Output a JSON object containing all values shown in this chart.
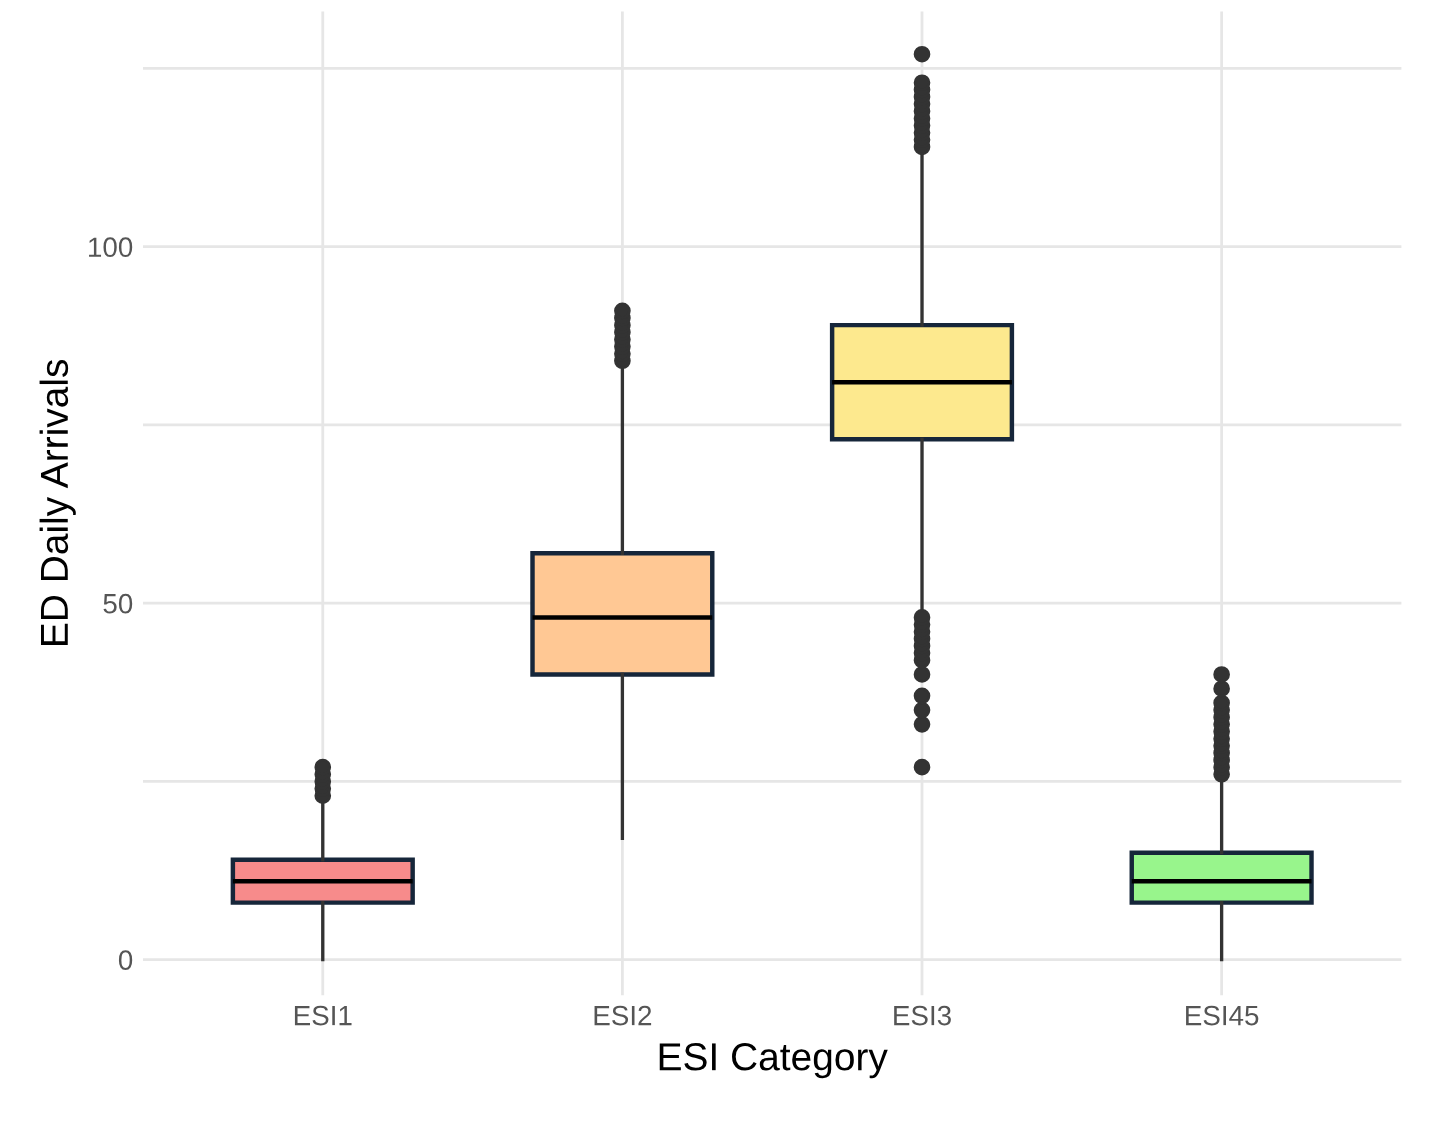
{
  "chart_data": {
    "type": "box",
    "xlabel": "ESI Category",
    "ylabel": "ED Daily Arrivals",
    "categories": [
      "ESI1",
      "ESI2",
      "ESI3",
      "ESI45"
    ],
    "colors": [
      "#f78b8b",
      "#ffc894",
      "#fde98e",
      "#98f58c"
    ],
    "boxes": [
      {
        "low": 0,
        "q1": 8,
        "median": 11,
        "q3": 14,
        "high": 22,
        "outliers": [
          23,
          24,
          25,
          26,
          27
        ]
      },
      {
        "low": 17,
        "q1": 40,
        "median": 48,
        "q3": 57,
        "high": 83,
        "outliers": [
          84,
          85,
          86,
          87,
          88,
          89,
          90,
          91
        ]
      },
      {
        "low": 49,
        "q1": 73,
        "median": 81,
        "q3": 89,
        "high": 113,
        "outliers": [
          27,
          33,
          35,
          37,
          40,
          42,
          43,
          44,
          45,
          46,
          47,
          48,
          114,
          115,
          116,
          117,
          118,
          119,
          120,
          121,
          122,
          123,
          127
        ]
      },
      {
        "low": 0,
        "q1": 8,
        "median": 11,
        "q3": 15,
        "high": 25,
        "outliers": [
          26,
          27,
          28,
          29,
          30,
          31,
          32,
          33,
          34,
          35,
          36,
          38,
          40
        ]
      }
    ],
    "ylim": [
      -5,
      133
    ],
    "yticks": [
      0,
      {
        "value": 25,
        "label": null
      },
      50,
      {
        "value": 75,
        "label": null
      },
      100,
      {
        "value": 125,
        "label": null
      }
    ],
    "grid": true
  }
}
